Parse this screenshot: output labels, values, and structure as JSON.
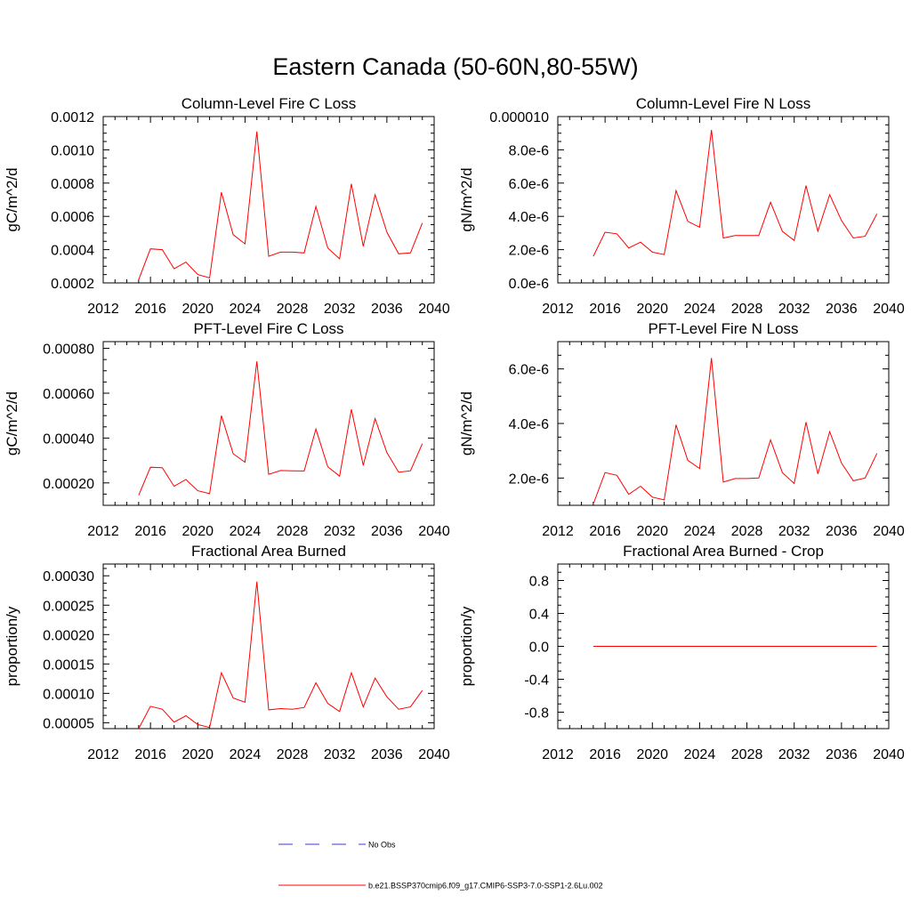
{
  "figure": {
    "title": "Eastern Canada (50-60N,80-55W)"
  },
  "legend": [
    {
      "label": "No Obs",
      "color": "#3b3bcc",
      "style": "dashed"
    },
    {
      "label": "b.e21.BSSP370cmip6.f09_g17.CMIP6-SSP3-7.0-SSP1-2.6Lu.002",
      "color": "#ff0000",
      "style": "solid"
    }
  ],
  "chart_data": [
    {
      "type": "line",
      "title": "Column-Level Fire C Loss",
      "ylabel": "gC/m^2/d",
      "xlim": [
        2012,
        2040
      ],
      "ylim": [
        0.0002,
        0.0012
      ],
      "xticks": [
        2012,
        2016,
        2020,
        2024,
        2028,
        2032,
        2036,
        2040
      ],
      "xtick_labels": [
        "2012",
        "2016",
        "2020",
        "2024",
        "2028",
        "2032",
        "2036",
        "2040"
      ],
      "yticks": [
        0.0002,
        0.0004,
        0.0006,
        0.0008,
        0.001,
        0.0012
      ],
      "ytick_labels": [
        "0.0002",
        "0.0004",
        "0.0006",
        "0.0008",
        "0.0010",
        "0.0012"
      ],
      "x": [
        2015,
        2016,
        2017,
        2018,
        2019,
        2020,
        2021,
        2022,
        2023,
        2024,
        2025,
        2026,
        2027,
        2028,
        2029,
        2030,
        2031,
        2032,
        2033,
        2034,
        2035,
        2036,
        2037,
        2038,
        2039
      ],
      "series": [
        {
          "color": "#ff0000",
          "values": [
            0.00022,
            0.000405,
            0.0004,
            0.000285,
            0.000325,
            0.00025,
            0.00023,
            0.000745,
            0.00049,
            0.000435,
            0.00111,
            0.00036,
            0.000385,
            0.000385,
            0.00038,
            0.00066,
            0.00041,
            0.000345,
            0.000795,
            0.00042,
            0.00073,
            0.000505,
            0.000375,
            0.00038,
            0.00056
          ]
        }
      ]
    },
    {
      "type": "line",
      "title": "Column-Level Fire N Loss",
      "ylabel": "gN/m^2/d",
      "xlim": [
        2012,
        2040
      ],
      "ylim": [
        0.0,
        1e-05
      ],
      "xticks": [
        2012,
        2016,
        2020,
        2024,
        2028,
        2032,
        2036,
        2040
      ],
      "xtick_labels": [
        "2012",
        "2016",
        "2020",
        "2024",
        "2028",
        "2032",
        "2036",
        "2040"
      ],
      "yticks": [
        0.0,
        2e-06,
        4e-06,
        6e-06,
        8e-06,
        1e-05
      ],
      "ytick_labels": [
        "0.0e-6",
        "2.0e-6",
        "4.0e-6",
        "6.0e-6",
        "8.0e-6",
        "0.000010"
      ],
      "x": [
        2015,
        2016,
        2017,
        2018,
        2019,
        2020,
        2021,
        2022,
        2023,
        2024,
        2025,
        2026,
        2027,
        2028,
        2029,
        2030,
        2031,
        2032,
        2033,
        2034,
        2035,
        2036,
        2037,
        2038,
        2039
      ],
      "series": [
        {
          "color": "#ff0000",
          "values": [
            1.6e-06,
            3.05e-06,
            2.95e-06,
            2.1e-06,
            2.45e-06,
            1.85e-06,
            1.7e-06,
            5.55e-06,
            3.7e-06,
            3.35e-06,
            9.2e-06,
            2.7e-06,
            2.85e-06,
            2.85e-06,
            2.85e-06,
            4.85e-06,
            3.1e-06,
            2.55e-06,
            5.85e-06,
            3.1e-06,
            5.3e-06,
            3.75e-06,
            2.7e-06,
            2.8e-06,
            4.15e-06
          ]
        }
      ]
    },
    {
      "type": "line",
      "title": "PFT-Level Fire C Loss",
      "ylabel": "gC/m^2/d",
      "xlim": [
        2012,
        2040
      ],
      "ylim": [
        0.0001,
        0.00083
      ],
      "xticks": [
        2012,
        2016,
        2020,
        2024,
        2028,
        2032,
        2036,
        2040
      ],
      "xtick_labels": [
        "2012",
        "2016",
        "2020",
        "2024",
        "2028",
        "2032",
        "2036",
        "2040"
      ],
      "yticks": [
        0.0002,
        0.0004,
        0.0006,
        0.0008
      ],
      "ytick_labels": [
        "0.00020",
        "0.00040",
        "0.00060",
        "0.00080"
      ],
      "x": [
        2015,
        2016,
        2017,
        2018,
        2019,
        2020,
        2021,
        2022,
        2023,
        2024,
        2025,
        2026,
        2027,
        2028,
        2029,
        2030,
        2031,
        2032,
        2033,
        2034,
        2035,
        2036,
        2037,
        2038,
        2039
      ],
      "series": [
        {
          "color": "#ff0000",
          "values": [
            0.000145,
            0.00027,
            0.000268,
            0.000185,
            0.000215,
            0.000165,
            0.000152,
            0.0005,
            0.00033,
            0.000292,
            0.000742,
            0.000238,
            0.000255,
            0.000254,
            0.000253,
            0.00044,
            0.000272,
            0.00023,
            0.000528,
            0.000278,
            0.000487,
            0.000335,
            0.000248,
            0.000254,
            0.000375
          ]
        }
      ]
    },
    {
      "type": "line",
      "title": "PFT-Level Fire N Loss",
      "ylabel": "gN/m^2/d",
      "xlim": [
        2012,
        2040
      ],
      "ylim": [
        1e-06,
        7e-06
      ],
      "xticks": [
        2012,
        2016,
        2020,
        2024,
        2028,
        2032,
        2036,
        2040
      ],
      "xtick_labels": [
        "2012",
        "2016",
        "2020",
        "2024",
        "2028",
        "2032",
        "2036",
        "2040"
      ],
      "yticks": [
        2e-06,
        4e-06,
        6e-06
      ],
      "ytick_labels": [
        "2.0e-6",
        "4.0e-6",
        "6.0e-6"
      ],
      "x": [
        2015,
        2016,
        2017,
        2018,
        2019,
        2020,
        2021,
        2022,
        2023,
        2024,
        2025,
        2026,
        2027,
        2028,
        2029,
        2030,
        2031,
        2032,
        2033,
        2034,
        2035,
        2036,
        2037,
        2038,
        2039
      ],
      "series": [
        {
          "color": "#ff0000",
          "values": [
            1.05e-06,
            2.2e-06,
            2.1e-06,
            1.4e-06,
            1.7e-06,
            1.3e-06,
            1.2e-06,
            3.95e-06,
            2.65e-06,
            2.35e-06,
            6.4e-06,
            1.85e-06,
            1.98e-06,
            1.98e-06,
            2e-06,
            3.4e-06,
            2.2e-06,
            1.8e-06,
            4.05e-06,
            2.15e-06,
            3.7e-06,
            2.55e-06,
            1.9e-06,
            2e-06,
            2.9e-06
          ]
        }
      ]
    },
    {
      "type": "line",
      "title": "Fractional Area Burned",
      "ylabel": "proportion/y",
      "xlim": [
        2012,
        2040
      ],
      "ylim": [
        4e-05,
        0.00032
      ],
      "xticks": [
        2012,
        2016,
        2020,
        2024,
        2028,
        2032,
        2036,
        2040
      ],
      "xtick_labels": [
        "2012",
        "2016",
        "2020",
        "2024",
        "2028",
        "2032",
        "2036",
        "2040"
      ],
      "yticks": [
        5e-05,
        0.0001,
        0.00015,
        0.0002,
        0.00025,
        0.0003
      ],
      "ytick_labels": [
        "0.00005",
        "0.00010",
        "0.00015",
        "0.00020",
        "0.00025",
        "0.00030"
      ],
      "x": [
        2015,
        2016,
        2017,
        2018,
        2019,
        2020,
        2021,
        2022,
        2023,
        2024,
        2025,
        2026,
        2027,
        2028,
        2029,
        2030,
        2031,
        2032,
        2033,
        2034,
        2035,
        2036,
        2037,
        2038,
        2039
      ],
      "series": [
        {
          "color": "#ff0000",
          "values": [
            4e-05,
            7.8e-05,
            7.3e-05,
            5.1e-05,
            6.2e-05,
            4.7e-05,
            4.2e-05,
            0.000135,
            9.2e-05,
            8.5e-05,
            0.00029,
            7.2e-05,
            7.4e-05,
            7.3e-05,
            7.6e-05,
            0.000118,
            8.3e-05,
            6.9e-05,
            0.000135,
            7.7e-05,
            0.000126,
            9.4e-05,
            7.3e-05,
            7.7e-05,
            0.000105
          ]
        }
      ]
    },
    {
      "type": "line",
      "title": "Fractional Area Burned - Crop",
      "ylabel": "proportion/y",
      "xlim": [
        2012,
        2040
      ],
      "ylim": [
        -1.0,
        1.0
      ],
      "xticks": [
        2012,
        2016,
        2020,
        2024,
        2028,
        2032,
        2036,
        2040
      ],
      "xtick_labels": [
        "2012",
        "2016",
        "2020",
        "2024",
        "2028",
        "2032",
        "2036",
        "2040"
      ],
      "yticks": [
        -0.8,
        -0.4,
        0.0,
        0.4,
        0.8
      ],
      "ytick_labels": [
        "-0.8",
        "-0.4",
        "0.0",
        "0.4",
        "0.8"
      ],
      "x": [
        2015,
        2016,
        2017,
        2018,
        2019,
        2020,
        2021,
        2022,
        2023,
        2024,
        2025,
        2026,
        2027,
        2028,
        2029,
        2030,
        2031,
        2032,
        2033,
        2034,
        2035,
        2036,
        2037,
        2038,
        2039
      ],
      "series": [
        {
          "color": "#ff0000",
          "values": [
            0,
            0,
            0,
            0,
            0,
            0,
            0,
            0,
            0,
            0,
            0,
            0,
            0,
            0,
            0,
            0,
            0,
            0,
            0,
            0,
            0,
            0,
            0,
            0,
            0
          ]
        }
      ]
    }
  ]
}
